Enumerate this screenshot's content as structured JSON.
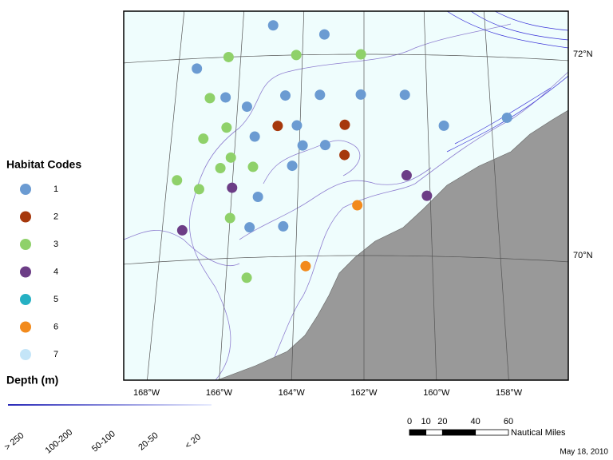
{
  "legend": {
    "title": "Habitat Codes",
    "items": [
      {
        "code": 1,
        "color": "#6b9bd2"
      },
      {
        "code": 2,
        "color": "#a6380c"
      },
      {
        "code": 3,
        "color": "#8fd16a"
      },
      {
        "code": 4,
        "color": "#6c3d86"
      },
      {
        "code": 5,
        "color": "#25b0c3"
      },
      {
        "code": 6,
        "color": "#f28a1c"
      },
      {
        "code": 7,
        "color": "#c4e5f8"
      }
    ]
  },
  "depth_legend": {
    "title": "Depth (m)",
    "classes": [
      "> 250",
      "100-200",
      "50-100",
      "20-50",
      "< 20"
    ]
  },
  "graticule": {
    "meridians": [
      {
        "value": -168,
        "label": "168°W"
      },
      {
        "value": -166,
        "label": "166°W"
      },
      {
        "value": -164,
        "label": "164°W"
      },
      {
        "value": -162,
        "label": "162°W"
      },
      {
        "value": -160,
        "label": "160°W"
      },
      {
        "value": -158,
        "label": "158°W"
      }
    ],
    "parallels": [
      {
        "value": 72,
        "label": "72°N"
      },
      {
        "value": 70,
        "label": "70°N"
      }
    ]
  },
  "stations": [
    {
      "lon": -165.0,
      "lat": 72.3,
      "code": 1
    },
    {
      "lon": -163.3,
      "lat": 72.2,
      "code": 1
    },
    {
      "lon": -167.4,
      "lat": 71.9,
      "code": 1
    },
    {
      "lon": -166.4,
      "lat": 71.6,
      "code": 1
    },
    {
      "lon": -164.5,
      "lat": 71.6,
      "code": 1
    },
    {
      "lon": -163.4,
      "lat": 71.6,
      "code": 1
    },
    {
      "lon": -162.1,
      "lat": 71.6,
      "code": 1
    },
    {
      "lon": -160.7,
      "lat": 71.6,
      "code": 1
    },
    {
      "lon": -165.7,
      "lat": 71.5,
      "code": 1
    },
    {
      "lon": -164.1,
      "lat": 71.3,
      "code": 1
    },
    {
      "lon": -159.5,
      "lat": 71.3,
      "code": 1
    },
    {
      "lon": -157.5,
      "lat": 71.4,
      "code": 1
    },
    {
      "lon": -165.4,
      "lat": 71.2,
      "code": 1
    },
    {
      "lon": -163.9,
      "lat": 71.1,
      "code": 1
    },
    {
      "lon": -163.2,
      "lat": 71.1,
      "code": 1
    },
    {
      "lon": -164.2,
      "lat": 70.9,
      "code": 1
    },
    {
      "lon": -165.2,
      "lat": 70.6,
      "code": 1
    },
    {
      "lon": -165.4,
      "lat": 70.3,
      "code": 1
    },
    {
      "lon": -164.4,
      "lat": 70.3,
      "code": 1
    },
    {
      "lon": -164.7,
      "lat": 71.3,
      "code": 2
    },
    {
      "lon": -162.6,
      "lat": 71.3,
      "code": 2
    },
    {
      "lon": -162.6,
      "lat": 71.0,
      "code": 2
    },
    {
      "lon": -166.4,
      "lat": 72.0,
      "code": 3
    },
    {
      "lon": -164.2,
      "lat": 72.0,
      "code": 3
    },
    {
      "lon": -162.1,
      "lat": 72.0,
      "code": 3
    },
    {
      "lon": -166.9,
      "lat": 71.6,
      "code": 3
    },
    {
      "lon": -166.3,
      "lat": 71.3,
      "code": 3
    },
    {
      "lon": -167.0,
      "lat": 71.2,
      "code": 3
    },
    {
      "lon": -166.1,
      "lat": 71.0,
      "code": 3
    },
    {
      "lon": -166.4,
      "lat": 70.9,
      "code": 3
    },
    {
      "lon": -165.4,
      "lat": 70.9,
      "code": 3
    },
    {
      "lon": -167.7,
      "lat": 70.8,
      "code": 3
    },
    {
      "lon": -167.0,
      "lat": 70.7,
      "code": 3
    },
    {
      "lon": -166.0,
      "lat": 70.4,
      "code": 3
    },
    {
      "lon": -165.4,
      "lat": 69.8,
      "code": 3
    },
    {
      "lon": -160.7,
      "lat": 70.8,
      "code": 4
    },
    {
      "lon": -160.1,
      "lat": 70.6,
      "code": 4
    },
    {
      "lon": -166.0,
      "lat": 70.7,
      "code": 4
    },
    {
      "lon": -167.4,
      "lat": 70.3,
      "code": 4
    },
    {
      "lon": -162.2,
      "lat": 70.5,
      "code": 6
    },
    {
      "lon": -163.7,
      "lat": 69.9,
      "code": 6
    }
  ],
  "scale_bar": {
    "ticks": [
      0,
      10,
      20,
      40,
      60
    ],
    "unit": "Nautical Miles"
  },
  "date": "May 18, 2010"
}
